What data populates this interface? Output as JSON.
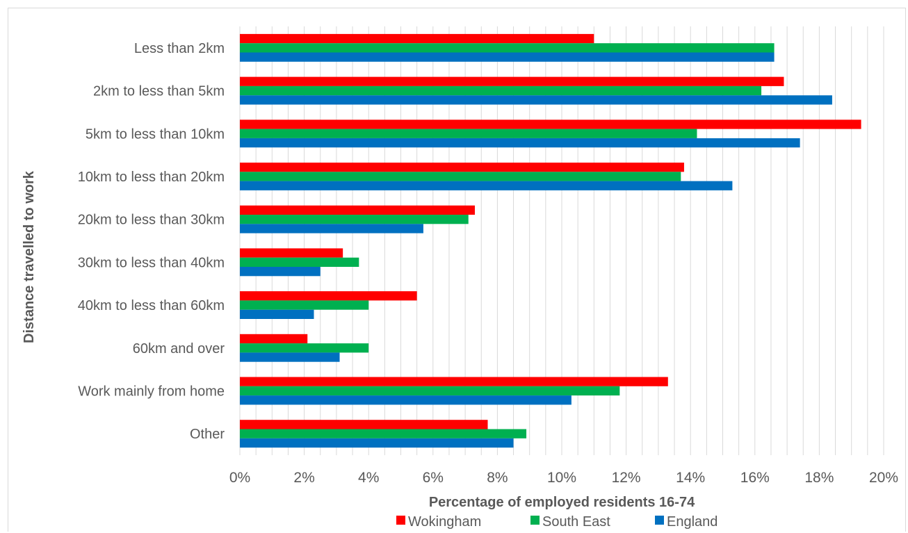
{
  "chart_data": {
    "type": "bar",
    "orientation": "horizontal",
    "title": "",
    "xlabel": "Percentage of employed residents 16-74",
    "ylabel": "Distance travelled to work",
    "xlim": [
      0,
      20
    ],
    "x_ticks": [
      "0%",
      "2%",
      "4%",
      "6%",
      "8%",
      "10%",
      "12%",
      "14%",
      "16%",
      "18%",
      "20%"
    ],
    "x_unit": "%",
    "grid": "vertical lines every 0.5%",
    "legend_position": "bottom",
    "categories": [
      "Less than 2km",
      "2km to less than 5km",
      "5km to less than 10km",
      "10km to less than 20km",
      "20km to less than 30km",
      "30km to less than 40km",
      "40km to less than 60km",
      "60km and over",
      "Work mainly from home",
      "Other"
    ],
    "series": [
      {
        "name": "Wokingham",
        "color": "#ff0000",
        "values": [
          11.0,
          16.9,
          19.3,
          13.8,
          7.3,
          3.2,
          5.5,
          2.1,
          13.3,
          7.7
        ]
      },
      {
        "name": "South East",
        "color": "#00b050",
        "values": [
          16.6,
          16.2,
          14.2,
          13.7,
          7.1,
          3.7,
          4.0,
          4.0,
          11.8,
          8.9
        ]
      },
      {
        "name": "England",
        "color": "#0070c0",
        "values": [
          16.6,
          18.4,
          17.4,
          15.3,
          5.7,
          2.5,
          2.3,
          3.1,
          10.3,
          8.5
        ]
      }
    ]
  }
}
